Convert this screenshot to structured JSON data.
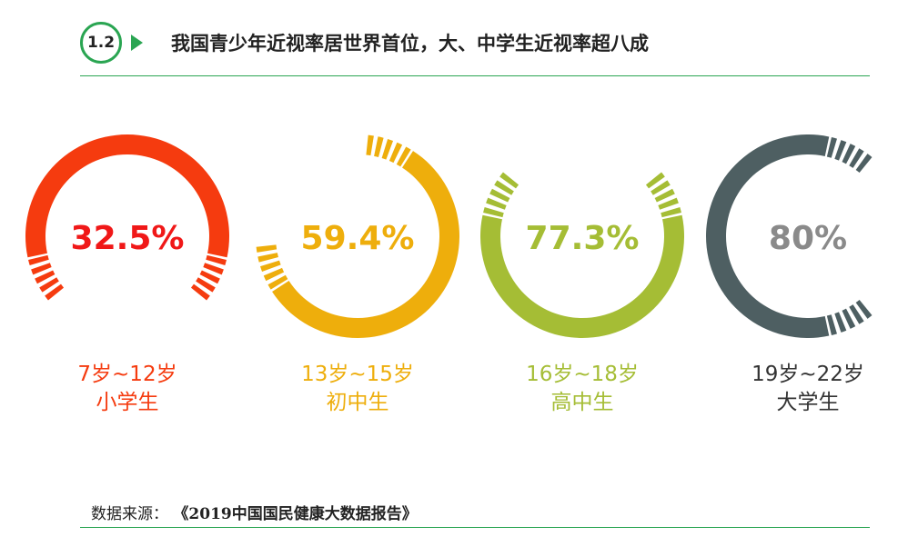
{
  "header": {
    "badge": "1.2",
    "title": "我国青少年近视率居世界首位，大、中学生近视率超八成"
  },
  "chart_data": {
    "type": "donut",
    "title": "我国青少年近视率居世界首位，大、中学生近视率超八成",
    "series": [
      {
        "value_label": "32.5%",
        "value": 32.5,
        "age": "7岁~12岁",
        "group": "小学生",
        "color": "#f53b0f",
        "value_color": "#f01818",
        "label_color": "#f53b0f",
        "gap_side": "bottom"
      },
      {
        "value_label": "59.4%",
        "value": 59.4,
        "age": "13岁~15岁",
        "group": "初中生",
        "color": "#eeae0c",
        "value_color": "#eeae0c",
        "label_color": "#eeae0c",
        "gap_side": "top-left"
      },
      {
        "value_label": "77.3%",
        "value": 77.3,
        "age": "16岁~18岁",
        "group": "高中生",
        "color": "#a5bd35",
        "value_color": "#a5bd35",
        "label_color": "#a5bd35",
        "gap_side": "top"
      },
      {
        "value_label": "80%",
        "value": 80,
        "age": "19岁~22岁",
        "group": "大学生",
        "color": "#4e5f62",
        "value_color": "#8a8a8a",
        "label_color": "#333333",
        "gap_side": "right"
      }
    ]
  },
  "source": {
    "label": "数据来源：",
    "value": "《2019中国国民健康大数据报告》"
  }
}
